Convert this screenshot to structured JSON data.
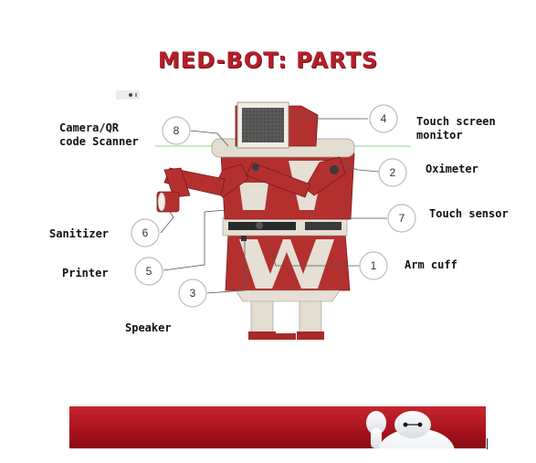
{
  "title": "MED-BOT: PARTS",
  "parts": [
    {
      "number": "1",
      "name": "Arm cuff"
    },
    {
      "number": "2",
      "name": "Oximeter"
    },
    {
      "number": "3",
      "name": "Speaker"
    },
    {
      "number": "4",
      "name": "Touch screen\nmonitor"
    },
    {
      "number": "5",
      "name": "Printer"
    },
    {
      "number": "6",
      "name": "Sanitizer"
    },
    {
      "number": "7",
      "name": "Touch sensor"
    },
    {
      "number": "8",
      "name": "Camera/QR\ncode Scanner"
    }
  ],
  "colors": {
    "robot_red": "#b3302f",
    "robot_dark_red": "#8e1f20",
    "robot_cream": "#e6dfd3",
    "title_red": "#b51f2a",
    "banner_red": "#b81a24"
  }
}
